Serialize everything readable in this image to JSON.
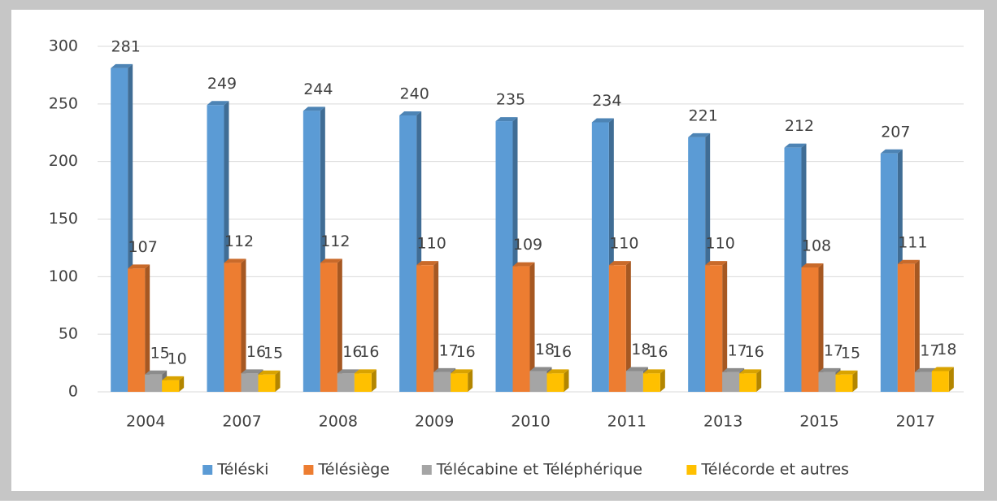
{
  "chart_data": {
    "type": "bar3d",
    "categories": [
      "2004",
      "2007",
      "2008",
      "2009",
      "2010",
      "2011",
      "2013",
      "2015",
      "2017"
    ],
    "series": [
      {
        "name": "Téléski",
        "color": "#5b9bd5",
        "values": [
          281,
          249,
          244,
          240,
          235,
          234,
          221,
          212,
          207
        ]
      },
      {
        "name": "Télésiège",
        "color": "#ed7d31",
        "values": [
          107,
          112,
          112,
          110,
          109,
          110,
          110,
          108,
          111
        ]
      },
      {
        "name": "Télécabine et Téléphérique",
        "color": "#a5a5a5",
        "values": [
          15,
          16,
          16,
          17,
          18,
          18,
          17,
          17,
          17
        ]
      },
      {
        "name": "Télécorde et autres",
        "color": "#ffc000",
        "values": [
          10,
          15,
          16,
          16,
          16,
          16,
          16,
          15,
          18
        ]
      }
    ],
    "ylim": [
      0,
      300
    ],
    "yticks": [
      0,
      50,
      100,
      150,
      200,
      250,
      300
    ],
    "grid": true,
    "legend": "bottom"
  }
}
